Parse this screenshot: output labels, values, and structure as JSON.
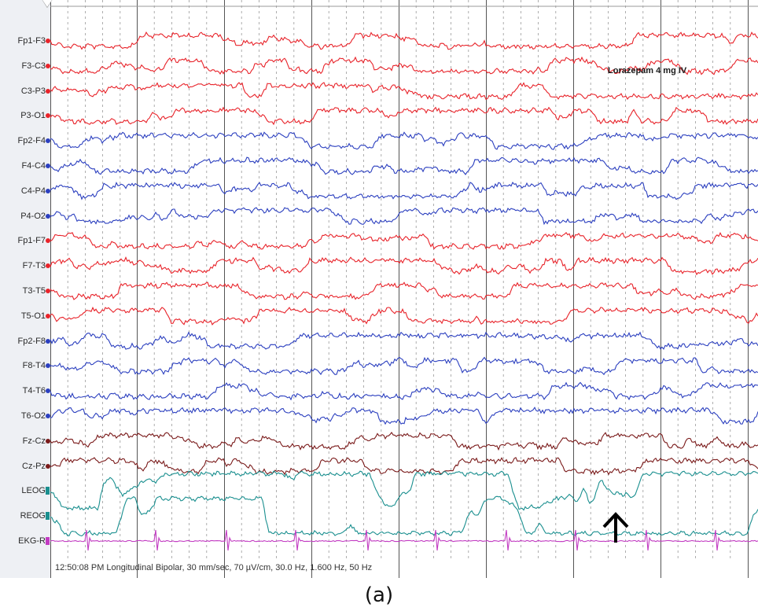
{
  "channels": [
    {
      "label": "Fp1-F3",
      "color": "#e8232a"
    },
    {
      "label": "F3-C3",
      "color": "#e8232a"
    },
    {
      "label": "C3-P3",
      "color": "#e8232a"
    },
    {
      "label": "P3-O1",
      "color": "#e8232a"
    },
    {
      "label": "Fp2-F4",
      "color": "#2b3fbf"
    },
    {
      "label": "F4-C4",
      "color": "#2b3fbf"
    },
    {
      "label": "C4-P4",
      "color": "#2b3fbf"
    },
    {
      "label": "P4-O2",
      "color": "#2b3fbf"
    },
    {
      "label": "Fp1-F7",
      "color": "#e8232a"
    },
    {
      "label": "F7-T3",
      "color": "#e8232a"
    },
    {
      "label": "T3-T5",
      "color": "#e8232a"
    },
    {
      "label": "T5-O1",
      "color": "#e8232a"
    },
    {
      "label": "Fp2-F8",
      "color": "#2b3fbf"
    },
    {
      "label": "F8-T4",
      "color": "#2b3fbf"
    },
    {
      "label": "T4-T6",
      "color": "#2b3fbf"
    },
    {
      "label": "T6-O2",
      "color": "#2b3fbf"
    },
    {
      "label": "Fz-Cz",
      "color": "#7a1a1a"
    },
    {
      "label": "Cz-Pz",
      "color": "#7a1a1a"
    },
    {
      "label": "LEOG",
      "color": "#1a8f8f"
    },
    {
      "label": "REOG",
      "color": "#1a8f8f"
    },
    {
      "label": "EKG-R",
      "color": "#c23bc2"
    }
  ],
  "annotation": "Lorazepam 4 mg IV",
  "status": "12:50:08 PM Longitudinal Bipolar, 30 mm/sec, 70 µV/cm, 30.0 Hz, 1.600 Hz, 50 Hz",
  "caption": "(a)",
  "arrow_icon": "up-arrow-icon",
  "colors": {
    "grid_solid": "#555555",
    "grid_dashed": "#9a9a9a",
    "label_bg": "#eef0f4"
  }
}
